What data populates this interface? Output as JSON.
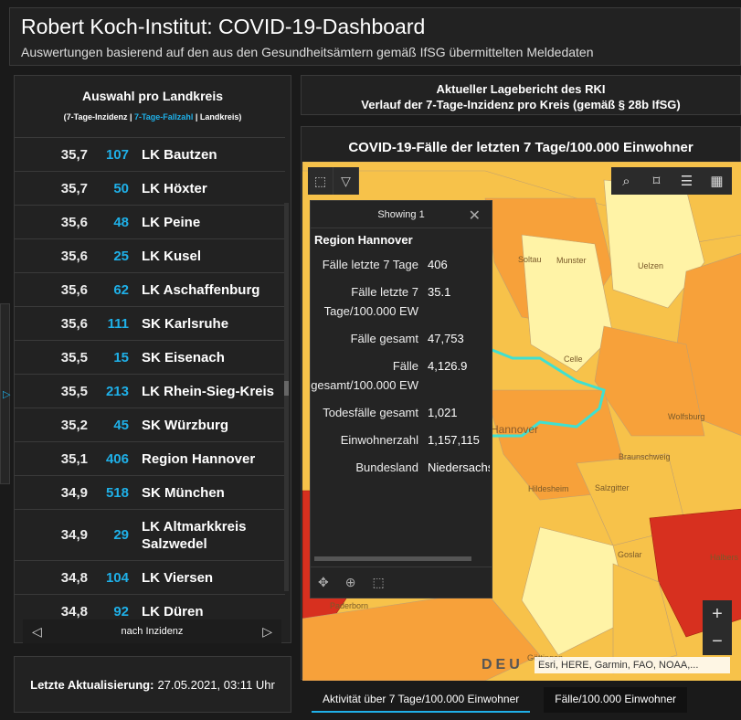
{
  "header": {
    "title": "Robert Koch-Institut: COVID-19-Dashboard",
    "subtitle": "Auswertungen basierend auf den aus den Gesundheitsämtern gemäß IfSG übermittelten Meldedaten"
  },
  "left_panel": {
    "title": "Auswahl pro Landkreis",
    "legend_open": "(7-Tage-Inzidenz | ",
    "legend_cyan": "7-Tage-Fallzahl",
    "legend_close": " | Landkreis)",
    "rows": [
      {
        "inc": "35,7",
        "cnt": "107",
        "name": "LK Bautzen"
      },
      {
        "inc": "35,7",
        "cnt": "50",
        "name": "LK Höxter"
      },
      {
        "inc": "35,6",
        "cnt": "48",
        "name": "LK Peine"
      },
      {
        "inc": "35,6",
        "cnt": "25",
        "name": "LK Kusel"
      },
      {
        "inc": "35,6",
        "cnt": "62",
        "name": "LK Aschaffenburg"
      },
      {
        "inc": "35,6",
        "cnt": "111",
        "name": "SK Karlsruhe"
      },
      {
        "inc": "35,5",
        "cnt": "15",
        "name": "SK Eisenach"
      },
      {
        "inc": "35,5",
        "cnt": "213",
        "name": "LK Rhein-Sieg-Kreis"
      },
      {
        "inc": "35,2",
        "cnt": "45",
        "name": "SK Würzburg"
      },
      {
        "inc": "35,1",
        "cnt": "406",
        "name": "Region Hannover"
      },
      {
        "inc": "34,9",
        "cnt": "518",
        "name": "SK München"
      },
      {
        "inc": "34,9",
        "cnt": "29",
        "name": "LK Altmarkkreis Salzwedel"
      },
      {
        "inc": "34,8",
        "cnt": "104",
        "name": "LK Viersen"
      },
      {
        "inc": "34,8",
        "cnt": "92",
        "name": "LK Düren"
      }
    ],
    "footer_label": "nach Inzidenz"
  },
  "update": {
    "label": "Letzte Aktualisierung:",
    "value": "27.05.2021, 03:11 Uhr"
  },
  "rki": {
    "line1": "Aktueller Lagebericht des RKI",
    "line2": "Verlauf der 7-Tage-Inzidenz pro Kreis (gemäß § 28b IfSG)"
  },
  "map": {
    "title": "COVID-19-Fälle der letzten 7 Tage/100.000 Einwohner",
    "labels": {
      "soltau": "Soltau",
      "munster": "Munster",
      "uelzen": "Uelzen",
      "celle": "Celle",
      "hannover": "Hannover",
      "wolfsburg": "Wolfsburg",
      "braunschweig": "Braunschweig",
      "hildesheim": "Hildesheim",
      "salzgitter": "Salzgitter",
      "goslar": "Goslar",
      "halberstadt": "Halbers",
      "paderborn": "Paderborn",
      "gottingen": "Göttingen"
    },
    "attribution": "Esri, HERE, Garmin, FAO, NOAA,...",
    "deu": "DEU"
  },
  "popup": {
    "header": "Showing 1",
    "title": "Region Hannover",
    "fields": [
      {
        "k": "Fälle letzte 7 Tage",
        "v": "406"
      },
      {
        "k": "Fälle letzte 7 Tage/100.000 EW",
        "v": "35.1"
      },
      {
        "k": "Fälle gesamt",
        "v": "47,753"
      },
      {
        "k": "Fälle gesamt/100.000 EW",
        "v": "4,126.9"
      },
      {
        "k": "Todesfälle gesamt",
        "v": "1,021"
      },
      {
        "k": "Einwohnerzahl",
        "v": "1,157,115"
      },
      {
        "k": "Bundesland",
        "v": "Niedersachsen"
      }
    ]
  },
  "tabs": {
    "tab1": "Aktivität über 7 Tage/100.000 Einwohner",
    "tab2": "Fälle/100.000 Einwohner"
  },
  "colors": {
    "accent": "#1fb0e8",
    "light_yellow": "#fff3a6",
    "orange": "#f7a13a",
    "red": "#d7301f"
  }
}
